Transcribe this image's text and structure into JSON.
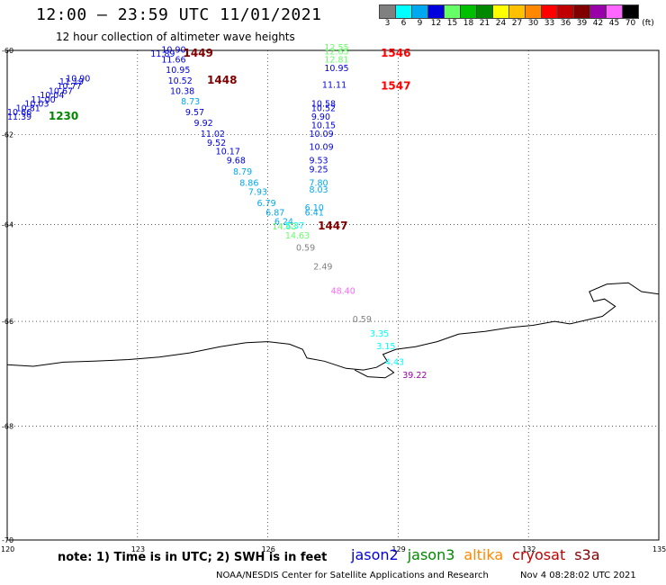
{
  "header": {
    "title": "12:00 – 23:59 UTC 11/01/2021",
    "subtitle": "12 hour collection of altimeter wave heights"
  },
  "color_scale": {
    "unit": "(ft)",
    "bins": [
      {
        "label": "3",
        "color": "#808080"
      },
      {
        "label": "6",
        "color": "#00ffff"
      },
      {
        "label": "9",
        "color": "#00a8f0"
      },
      {
        "label": "12",
        "color": "#0000dd"
      },
      {
        "label": "15",
        "color": "#66ff66"
      },
      {
        "label": "18",
        "color": "#00c000"
      },
      {
        "label": "21",
        "color": "#008800"
      },
      {
        "label": "24",
        "color": "#ffff00"
      },
      {
        "label": "27",
        "color": "#ffc000"
      },
      {
        "label": "30",
        "color": "#ff8800"
      },
      {
        "label": "33",
        "color": "#ff0000"
      },
      {
        "label": "36",
        "color": "#c00000"
      },
      {
        "label": "39",
        "color": "#800000"
      },
      {
        "label": "42",
        "color": "#9900aa"
      },
      {
        "label": "45",
        "color": "#ff66ff"
      },
      {
        "label": "70",
        "color": "#000000"
      }
    ]
  },
  "axes": {
    "lat_labels": [
      "-60",
      "-62",
      "-64",
      "-66",
      "-68",
      "-70"
    ],
    "lon_labels": [
      "120",
      "123",
      "126",
      "129",
      "132",
      "135"
    ]
  },
  "observations": [
    {
      "lon": 121.35,
      "lat": -60.75,
      "text": "10.90",
      "color": "#0000dd"
    },
    {
      "lon": 121.2,
      "lat": -60.83,
      "text": "11.19",
      "color": "#0000dd"
    },
    {
      "lon": 121.15,
      "lat": -60.93,
      "text": "10.77",
      "color": "#0000dd"
    },
    {
      "lon": 120.95,
      "lat": -61.05,
      "text": "10.67",
      "color": "#0000dd"
    },
    {
      "lon": 120.75,
      "lat": -61.15,
      "text": "10.04",
      "color": "#0000dd"
    },
    {
      "lon": 120.55,
      "lat": -61.25,
      "text": "11.00",
      "color": "#0000dd"
    },
    {
      "lon": 120.4,
      "lat": -61.35,
      "text": "10.03",
      "color": "#0000dd"
    },
    {
      "lon": 120.2,
      "lat": -61.45,
      "text": "10.81",
      "color": "#0000dd"
    },
    {
      "lon": 120.0,
      "lat": -61.55,
      "text": "10.66",
      "color": "#0000dd"
    },
    {
      "lon": 120.0,
      "lat": -61.65,
      "text": "11.39",
      "color": "#0000dd"
    },
    {
      "lon": 123.55,
      "lat": -60.05,
      "text": "10.90",
      "color": "#0000dd"
    },
    {
      "lon": 123.3,
      "lat": -60.15,
      "text": "11.89",
      "color": "#0000dd"
    },
    {
      "lon": 123.55,
      "lat": -60.3,
      "text": "11.66",
      "color": "#0000dd"
    },
    {
      "lon": 123.65,
      "lat": -60.55,
      "text": "10.95",
      "color": "#0000dd"
    },
    {
      "lon": 123.7,
      "lat": -60.8,
      "text": "10.52",
      "color": "#0000dd"
    },
    {
      "lon": 123.75,
      "lat": -61.05,
      "text": "10.38",
      "color": "#0000dd"
    },
    {
      "lon": 124.0,
      "lat": -61.3,
      "text": "8.73",
      "color": "#00a8f0"
    },
    {
      "lon": 124.1,
      "lat": -61.55,
      "text": "9.57",
      "color": "#0000dd"
    },
    {
      "lon": 124.3,
      "lat": -61.8,
      "text": "9.92",
      "color": "#0000dd"
    },
    {
      "lon": 124.45,
      "lat": -62.05,
      "text": "11.02",
      "color": "#0000dd"
    },
    {
      "lon": 124.6,
      "lat": -62.25,
      "text": "9.52",
      "color": "#0000dd"
    },
    {
      "lon": 124.8,
      "lat": -62.45,
      "text": "10.17",
      "color": "#0000dd"
    },
    {
      "lon": 125.05,
      "lat": -62.65,
      "text": "9.68",
      "color": "#0000dd"
    },
    {
      "lon": 125.2,
      "lat": -62.9,
      "text": "8.79",
      "color": "#00a8f0"
    },
    {
      "lon": 125.35,
      "lat": -63.15,
      "text": "8.86",
      "color": "#00a8f0"
    },
    {
      "lon": 125.55,
      "lat": -63.35,
      "text": "7.93",
      "color": "#00a8f0"
    },
    {
      "lon": 125.75,
      "lat": -63.6,
      "text": "6.79",
      "color": "#00a8f0"
    },
    {
      "lon": 125.95,
      "lat": -63.8,
      "text": "6.87",
      "color": "#00a8f0"
    },
    {
      "lon": 126.15,
      "lat": -64.0,
      "text": "6.24",
      "color": "#00a8f0"
    },
    {
      "lon": 126.1,
      "lat": -64.1,
      "text": "14.63",
      "color": "#66ff66"
    },
    {
      "lon": 126.4,
      "lat": -64.08,
      "text": "5.37",
      "color": "#00ffff"
    },
    {
      "lon": 126.4,
      "lat": -64.3,
      "text": "14.63",
      "color": "#66ff66"
    },
    {
      "lon": 126.65,
      "lat": -64.55,
      "text": "0.59",
      "color": "#808080"
    },
    {
      "lon": 127.05,
      "lat": -64.95,
      "text": "2.49",
      "color": "#808080"
    },
    {
      "lon": 127.45,
      "lat": -65.45,
      "text": "48.40",
      "color": "#ff66ff"
    },
    {
      "lon": 127.95,
      "lat": -66.02,
      "text": "0.59",
      "color": "#808080"
    },
    {
      "lon": 127.3,
      "lat": -60.0,
      "text": "12.55",
      "color": "#66ff66"
    },
    {
      "lon": 127.3,
      "lat": -60.1,
      "text": "12.65",
      "color": "#66ff66"
    },
    {
      "lon": 127.3,
      "lat": -60.3,
      "text": "12.81",
      "color": "#66ff66"
    },
    {
      "lon": 127.3,
      "lat": -60.5,
      "text": "10.95",
      "color": "#0000dd"
    },
    {
      "lon": 127.25,
      "lat": -60.9,
      "text": "11.11",
      "color": "#0000dd"
    },
    {
      "lon": 127.0,
      "lat": -61.35,
      "text": "10.58",
      "color": "#0000dd"
    },
    {
      "lon": 127.0,
      "lat": -61.45,
      "text": "10.52",
      "color": "#0000dd"
    },
    {
      "lon": 127.0,
      "lat": -61.65,
      "text": "9.90",
      "color": "#0000dd"
    },
    {
      "lon": 127.0,
      "lat": -61.85,
      "text": "10.15",
      "color": "#0000dd"
    },
    {
      "lon": 126.95,
      "lat": -62.05,
      "text": "10.09",
      "color": "#0000dd"
    },
    {
      "lon": 126.95,
      "lat": -62.35,
      "text": "10.09",
      "color": "#0000dd"
    },
    {
      "lon": 126.95,
      "lat": -62.65,
      "text": "9.53",
      "color": "#0000dd"
    },
    {
      "lon": 126.95,
      "lat": -62.85,
      "text": "9.25",
      "color": "#0000dd"
    },
    {
      "lon": 126.95,
      "lat": -63.15,
      "text": "7.80",
      "color": "#00a8f0"
    },
    {
      "lon": 126.95,
      "lat": -63.3,
      "text": "8.03",
      "color": "#00a8f0"
    },
    {
      "lon": 126.85,
      "lat": -63.7,
      "text": "6.10",
      "color": "#00a8f0"
    },
    {
      "lon": 126.85,
      "lat": -63.8,
      "text": "6.41",
      "color": "#00a8f0"
    },
    {
      "lon": 128.35,
      "lat": -66.3,
      "text": "3.35",
      "color": "#00ffff"
    },
    {
      "lon": 128.5,
      "lat": -66.55,
      "text": "3.15",
      "color": "#00ffff"
    },
    {
      "lon": 128.7,
      "lat": -66.85,
      "text": "4.43",
      "color": "#00ffff"
    },
    {
      "lon": 129.1,
      "lat": -67.1,
      "text": "39.22",
      "color": "#9900aa"
    }
  ],
  "time_tags": [
    {
      "lon": 120.95,
      "lat": -61.65,
      "text": "1230",
      "color": "#008800"
    },
    {
      "lon": 124.05,
      "lat": -60.15,
      "text": "1449",
      "color": "#800000"
    },
    {
      "lon": 124.6,
      "lat": -60.8,
      "text": "1448",
      "color": "#800000"
    },
    {
      "lon": 127.15,
      "lat": -64.1,
      "text": "1447",
      "color": "#800000"
    },
    {
      "lon": 128.6,
      "lat": -60.15,
      "text": "1546",
      "color": "#ff0000"
    },
    {
      "lon": 128.6,
      "lat": -60.95,
      "text": "1547",
      "color": "#ff0000"
    }
  ],
  "footer": {
    "note": "note: 1) Time is in UTC; 2) SWH is in feet",
    "missions": [
      {
        "name": "jason2",
        "color": "#0000dd"
      },
      {
        "name": "jason3",
        "color": "#008800"
      },
      {
        "name": "altika",
        "color": "#ff8800"
      },
      {
        "name": "cryosat",
        "color": "#c00000"
      },
      {
        "name": "s3a",
        "color": "#800000"
      }
    ],
    "credit": "NOAA/NESDIS Center for Satellite Applications and Research",
    "timestamp": "Nov  4 08:28:02 UTC 2021"
  }
}
